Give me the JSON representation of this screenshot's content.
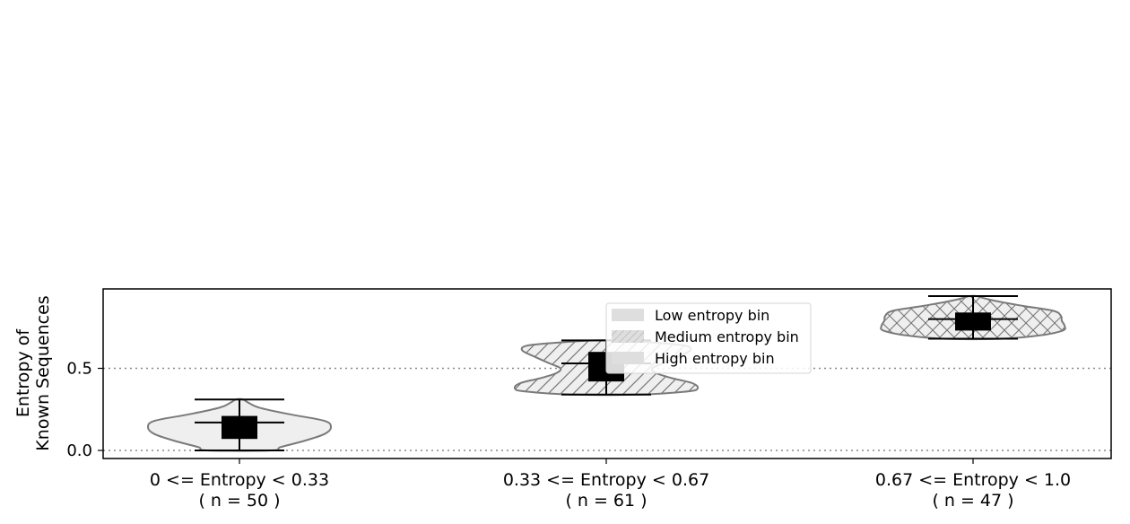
{
  "chart_data": {
    "type": "violin",
    "ylabel_lines": [
      "Entropy of",
      "Known Sequences"
    ],
    "ylim": [
      -0.05,
      0.98
    ],
    "yticks": [
      0.0,
      0.5
    ],
    "ytick_labels": [
      "0.0",
      "0.5"
    ],
    "reference_lines_y": [
      0.0,
      0.5
    ],
    "grid": false,
    "legend_position": "top-center",
    "categories": [
      {
        "line1": "0 <= Entropy < 0.33",
        "line2": "( n = 50 )"
      },
      {
        "line1": "0.33 <= Entropy < 0.67",
        "line2": "( n = 61 )"
      },
      {
        "line1": "0.67 <= Entropy < 1.0",
        "line2": "( n = 47 )"
      }
    ],
    "series": [
      {
        "name": "Low entropy bin",
        "hatch": "none",
        "min": 0.0,
        "max": 0.31,
        "q1": 0.07,
        "q3": 0.21,
        "median": 0.17,
        "profile": [
          [
            0.0,
            0.35
          ],
          [
            0.02,
            0.45
          ],
          [
            0.06,
            0.72
          ],
          [
            0.1,
            0.93
          ],
          [
            0.14,
            1.0
          ],
          [
            0.18,
            0.93
          ],
          [
            0.22,
            0.55
          ],
          [
            0.26,
            0.22
          ],
          [
            0.29,
            0.1
          ],
          [
            0.31,
            0.04
          ]
        ]
      },
      {
        "name": "Medium entropy bin",
        "hatch": "diagonal",
        "min": 0.34,
        "max": 0.67,
        "q1": 0.42,
        "q3": 0.6,
        "median": 0.53,
        "profile": [
          [
            0.34,
            0.35
          ],
          [
            0.36,
            0.9
          ],
          [
            0.38,
            1.0
          ],
          [
            0.41,
            0.94
          ],
          [
            0.44,
            0.72
          ],
          [
            0.47,
            0.55
          ],
          [
            0.5,
            0.5
          ],
          [
            0.53,
            0.62
          ],
          [
            0.57,
            0.78
          ],
          [
            0.61,
            0.92
          ],
          [
            0.64,
            0.85
          ],
          [
            0.66,
            0.45
          ],
          [
            0.67,
            0.12
          ]
        ]
      },
      {
        "name": "High entropy bin",
        "hatch": "crosshatch",
        "min": 0.68,
        "max": 0.94,
        "q1": 0.73,
        "q3": 0.84,
        "median": 0.8,
        "profile": [
          [
            0.68,
            0.3
          ],
          [
            0.7,
            0.72
          ],
          [
            0.73,
            0.98
          ],
          [
            0.76,
            1.0
          ],
          [
            0.79,
            0.97
          ],
          [
            0.82,
            0.96
          ],
          [
            0.85,
            0.88
          ],
          [
            0.88,
            0.55
          ],
          [
            0.91,
            0.25
          ],
          [
            0.93,
            0.1
          ],
          [
            0.94,
            0.04
          ]
        ]
      }
    ]
  }
}
